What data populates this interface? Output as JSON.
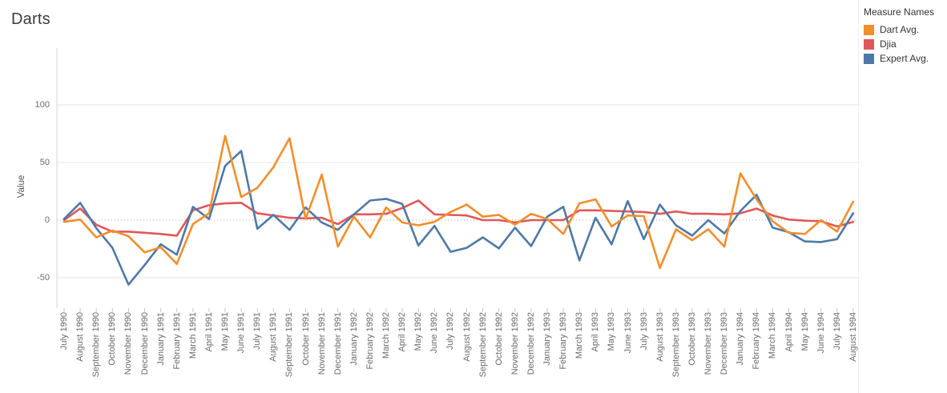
{
  "title": "Darts",
  "legend": {
    "title": "Measure Names",
    "items": [
      {
        "label": "Dart Avg.",
        "color": "#f28e2b"
      },
      {
        "label": "Djia",
        "color": "#e15759"
      },
      {
        "label": "Expert Avg.",
        "color": "#4e79a7"
      }
    ]
  },
  "y_axis": {
    "label": "Value",
    "ticks": [
      {
        "label": "100",
        "value": 100
      },
      {
        "label": "50",
        "value": 50
      },
      {
        "label": "0",
        "value": 0
      },
      {
        "label": "-50",
        "value": -50
      }
    ]
  },
  "chart_data": {
    "type": "line",
    "title": "Darts",
    "xlabel": "",
    "ylabel": "Value",
    "ylim": [
      -76,
      139
    ],
    "grid": "horizontal-light, dotted zero line",
    "legend_position": "top-right",
    "x": [
      "July 1990",
      "August 1990",
      "September 1990",
      "October 1990",
      "November 1990",
      "December 1990",
      "January 1991",
      "February 1991",
      "March 1991",
      "April 1991",
      "May 1991",
      "June 1991",
      "July 1991",
      "August 1991",
      "September 1991",
      "October 1991",
      "November 1991",
      "December 1991",
      "January 1992",
      "February 1992",
      "March 1992",
      "April 1992",
      "May 1992",
      "June 1992",
      "July 1992",
      "August 1992",
      "September 1992",
      "October 1992",
      "November 1992",
      "December 1992",
      "January 1993",
      "February 1993",
      "March 1993",
      "April 1993",
      "May 1993",
      "June 1993",
      "July 1993",
      "August 1993",
      "September 1993",
      "October 1993",
      "November 1993",
      "December 1993",
      "January 1994",
      "February 1994",
      "March 1994",
      "April 1994",
      "May 1994",
      "June 1994",
      "July 1994",
      "August 1994"
    ],
    "series": [
      {
        "name": "Dart Avg.",
        "color": "#f28e2b",
        "values": [
          -1.5,
          0.5,
          -15,
          -9,
          -14,
          -28,
          -23.5,
          -38,
          -3.5,
          6,
          73,
          20,
          28,
          46,
          71,
          1,
          39.5,
          -23,
          3,
          -15,
          11,
          -2,
          -4.5,
          -1.5,
          7,
          13.5,
          3,
          4.5,
          -4,
          5.5,
          1,
          -12,
          14.5,
          18,
          -5.5,
          4,
          3.5,
          -41.5,
          -8,
          -17.5,
          -8,
          -23,
          40.5,
          18,
          -1,
          -11,
          -12,
          0,
          -10,
          16
        ]
      },
      {
        "name": "Djia",
        "color": "#e15759",
        "values": [
          0,
          10,
          -4,
          -10,
          -10,
          -11,
          -12,
          -13.5,
          8.5,
          13,
          14.5,
          15,
          6,
          4,
          2,
          1.5,
          2,
          -3.5,
          5,
          5,
          5.5,
          10.5,
          17,
          5,
          4.5,
          4,
          0,
          0,
          -2,
          0,
          0,
          0,
          8.5,
          8.5,
          8,
          7.5,
          7,
          5.5,
          7.5,
          5.5,
          5.5,
          5,
          6,
          10,
          4,
          0.5,
          -0.5,
          -1,
          -5.5,
          -1.5
        ]
      },
      {
        "name": "Expert Avg.",
        "color": "#4e79a7",
        "values": [
          1,
          15,
          -7,
          -24,
          -56,
          -39,
          -21,
          -30,
          11.5,
          1,
          47,
          60,
          -7.5,
          4.5,
          -8.5,
          11,
          -2,
          -8.5,
          5,
          17,
          18.5,
          14,
          -22,
          -5,
          -27.5,
          -24,
          -15,
          -24.5,
          -6.5,
          -22.5,
          3,
          11.5,
          -35,
          2,
          -21,
          16.5,
          -16.5,
          13.5,
          -4.5,
          -13.5,
          0,
          -11.5,
          8,
          22,
          -6.5,
          -10.5,
          -18.5,
          -19,
          -16.5,
          6
        ]
      }
    ]
  }
}
